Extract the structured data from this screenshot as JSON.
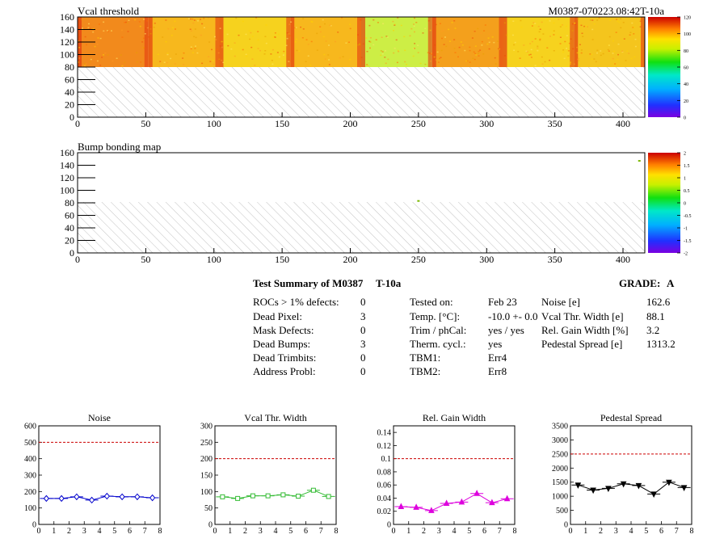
{
  "vcal_map": {
    "title": "Vcal threshold",
    "module_label": "M0387-070223.08:42T-10a",
    "y_ticks": [
      "0",
      "20",
      "40",
      "60",
      "80",
      "100",
      "120",
      "140",
      "160"
    ],
    "x_ticks": [
      "0",
      "50",
      "100",
      "150",
      "200",
      "250",
      "300",
      "350",
      "400"
    ],
    "palette_ticks": [
      "0",
      "20",
      "40",
      "60",
      "80",
      "100",
      "120"
    ],
    "chip_shades": [
      "#f28a1c",
      "#f7b81d",
      "#f6d21e",
      "#f7b81d",
      "#cdee45",
      "#f4a01c",
      "#f6d21e",
      "#f4c51d"
    ]
  },
  "bump_map": {
    "title": "Bump bonding map",
    "y_ticks": [
      "0",
      "20",
      "40",
      "60",
      "80",
      "100",
      "120",
      "140",
      "160"
    ],
    "x_ticks": [
      "0",
      "50",
      "100",
      "150",
      "200",
      "250",
      "300",
      "350",
      "400"
    ],
    "palette_ticks": [
      "-2",
      "-1.5",
      "-1",
      "-0.5",
      "0",
      "0.5",
      "1",
      "1.5",
      "2"
    ]
  },
  "summary": {
    "title": "Test Summary of M0387",
    "tag": "T-10a",
    "grade_label": "GRADE:",
    "grade": "A",
    "left": [
      {
        "label": "ROCs > 1% defects:",
        "value": "0"
      },
      {
        "label": "Dead Pixel:",
        "value": "3"
      },
      {
        "label": "Mask Defects:",
        "value": "0"
      },
      {
        "label": "Dead Bumps:",
        "value": "3"
      },
      {
        "label": "Dead Trimbits:",
        "value": "0"
      },
      {
        "label": "Address Probl:",
        "value": "0"
      }
    ],
    "middle": [
      {
        "label": "Tested on:",
        "value": "Feb 23"
      },
      {
        "label": "Temp. [°C]:",
        "value": "-10.0 +- 0.0"
      },
      {
        "label": "Trim / phCal:",
        "value": "yes / yes"
      },
      {
        "label": "Therm. cycl.:",
        "value": "yes"
      },
      {
        "label": "TBM1:",
        "value": "Err4"
      },
      {
        "label": "TBM2:",
        "value": "Err8"
      }
    ],
    "right": [
      {
        "label": "Noise [e]",
        "value": "162.6"
      },
      {
        "label": "Vcal Thr. Width [e]",
        "value": "88.1"
      },
      {
        "label": "Rel. Gain Width [%]",
        "value": "3.2"
      },
      {
        "label": "Pedestal Spread [e]",
        "value": "1313.2"
      }
    ]
  },
  "chart_data": [
    {
      "type": "heatmap",
      "title": "Vcal threshold",
      "xlim": [
        0,
        416
      ],
      "ylim": [
        0,
        160
      ],
      "z_range": [
        0,
        120
      ],
      "note": "filled region y 80-160; hatched region y 0-80"
    },
    {
      "type": "heatmap",
      "title": "Bump bonding map",
      "xlim": [
        0,
        416
      ],
      "ylim": [
        0,
        160
      ],
      "z_range": [
        -2,
        2
      ],
      "points": [
        {
          "x": 250,
          "y": 83
        },
        {
          "x": 412,
          "y": 147
        }
      ]
    },
    {
      "type": "line",
      "title": "Noise",
      "x": [
        0.5,
        1.5,
        2.5,
        3.5,
        4.5,
        5.5,
        6.5,
        7.5
      ],
      "values": [
        158,
        158,
        168,
        148,
        172,
        168,
        168,
        162
      ],
      "xlim": [
        0,
        8
      ],
      "ylim": [
        0,
        600
      ],
      "x_ticks": [
        "0",
        "1",
        "2",
        "3",
        "4",
        "5",
        "6",
        "7",
        "8"
      ],
      "y_ticks": [
        "0",
        "100",
        "200",
        "300",
        "400",
        "500",
        "600"
      ],
      "reference_line": 500,
      "color": "#0000cc",
      "marker": "diamond"
    },
    {
      "type": "line",
      "title": "Vcal Thr. Width",
      "x": [
        0.5,
        1.5,
        2.5,
        3.5,
        4.5,
        5.5,
        6.5,
        7.5
      ],
      "values": [
        84,
        79,
        87,
        87,
        90,
        86,
        104,
        85
      ],
      "xlim": [
        0,
        8
      ],
      "ylim": [
        0,
        300
      ],
      "x_ticks": [
        "0",
        "1",
        "2",
        "3",
        "4",
        "5",
        "6",
        "7",
        "8"
      ],
      "y_ticks": [
        "0",
        "50",
        "100",
        "150",
        "200",
        "250",
        "300"
      ],
      "reference_line": 200,
      "color": "#33bb33",
      "marker": "square"
    },
    {
      "type": "line",
      "title": "Rel. Gain Width",
      "x": [
        0.5,
        1.5,
        2.5,
        3.5,
        4.5,
        5.5,
        6.5,
        7.5
      ],
      "values": [
        0.027,
        0.026,
        0.021,
        0.032,
        0.034,
        0.047,
        0.033,
        0.039
      ],
      "xlim": [
        0,
        8
      ],
      "ylim": [
        0,
        0.15
      ],
      "x_ticks": [
        "0",
        "1",
        "2",
        "3",
        "4",
        "5",
        "6",
        "7",
        "8"
      ],
      "y_ticks": [
        "0",
        "0.02",
        "0.04",
        "0.06",
        "0.08",
        "0.1",
        "0.12",
        "0.14"
      ],
      "reference_line": 0.1,
      "color": "#dd00dd",
      "marker": "triangle"
    },
    {
      "type": "line",
      "title": "Pedestal Spread",
      "x": [
        0.5,
        1.5,
        2.5,
        3.5,
        4.5,
        5.5,
        6.5,
        7.5
      ],
      "values": [
        1400,
        1220,
        1280,
        1440,
        1380,
        1080,
        1500,
        1310
      ],
      "xlim": [
        0,
        8
      ],
      "ylim": [
        0,
        3500
      ],
      "x_ticks": [
        "0",
        "1",
        "2",
        "3",
        "4",
        "5",
        "6",
        "7",
        "8"
      ],
      "y_ticks": [
        "0",
        "500",
        "1000",
        "1500",
        "2000",
        "2500",
        "3000",
        "3500"
      ],
      "reference_line": 2500,
      "color": "#000000",
      "marker": "triangle-down"
    }
  ]
}
